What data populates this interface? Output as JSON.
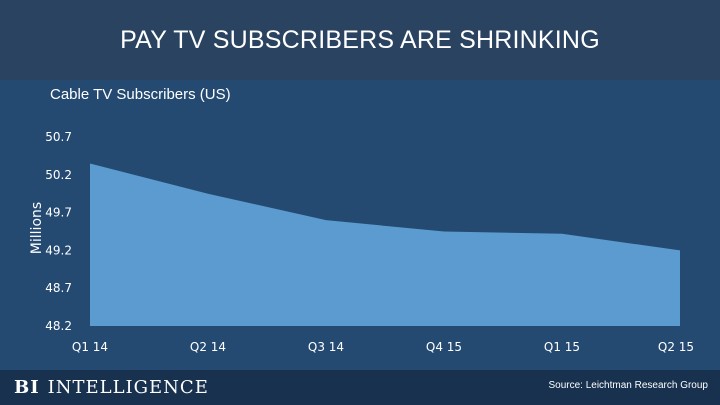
{
  "header": {
    "title": "PAY TV SUBSCRIBERS ARE SHRINKING"
  },
  "footer": {
    "logo_bi": "BI",
    "logo_intelligence": "INTELLIGENCE",
    "source": "Source: Leichtman Research Group"
  },
  "colors": {
    "background": "#244a72",
    "area_fill": "#5b9bd0",
    "text": "#ffffff"
  },
  "chart_data": {
    "type": "area",
    "title": "Cable TV Subscribers (US)",
    "xlabel": "",
    "ylabel": "Millions",
    "categories": [
      "Q1 14",
      "Q2 14",
      "Q3 14",
      "Q4 15",
      "Q1 15",
      "Q2 15"
    ],
    "series": [
      {
        "values": [
          50.35,
          49.95,
          49.6,
          49.45,
          49.42,
          49.2
        ]
      }
    ],
    "ylim": [
      48.2,
      50.7
    ],
    "yticks": [
      50.7,
      50.2,
      49.7,
      49.2,
      48.7,
      48.2
    ],
    "ytick_labels": [
      "50.7",
      "50.2",
      "49.7",
      "49.2",
      "48.7",
      "48.2"
    ],
    "grid": false,
    "legend": "none"
  }
}
